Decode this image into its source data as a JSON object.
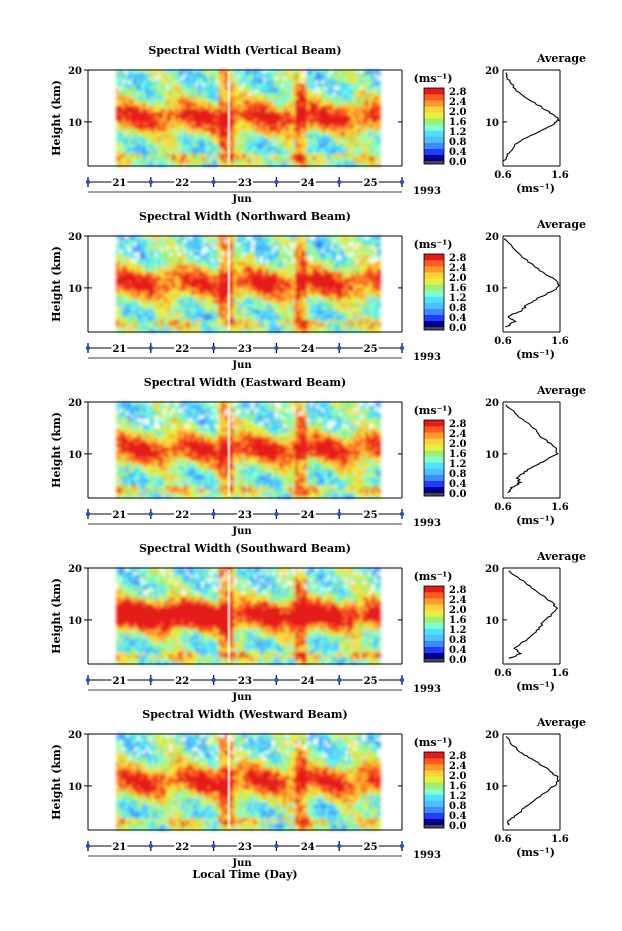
{
  "common": {
    "unit_label": "(ms⁻¹)",
    "average_title": "Average",
    "month_label": "Jun",
    "year_label": "1993",
    "x_axis_label": "Local Time (Day)",
    "height_label": "Height (km)",
    "colorbar_ticks": [
      "0.0",
      "0.4",
      "0.8",
      "1.2",
      "1.6",
      "2.0",
      "2.4",
      "2.8"
    ],
    "colormap": [
      "#4a4a4a",
      "#00008b",
      "#1f3cff",
      "#3d8cff",
      "#4fc0ff",
      "#4ee0ff",
      "#7fffd0",
      "#9ff070",
      "#e6f040",
      "#ffd23a",
      "#ff9a2a",
      "#ff5a20",
      "#e51a1a"
    ]
  },
  "chart_data": [
    {
      "type": "heatmap",
      "title": "Spectral Width (Vertical Beam)",
      "xlabel": "",
      "ylabel": "Height (km)",
      "x_ticks": [
        "21",
        "22",
        "23",
        "24",
        "25"
      ],
      "y_ticks": [
        "10",
        "20"
      ],
      "xlim": [
        20.5,
        25.5
      ],
      "ylim": [
        1.5,
        20
      ],
      "data_coverage": [
        20.95,
        25.15
      ],
      "colorbar": {
        "label": "(ms⁻¹)",
        "range": [
          0.0,
          2.8
        ],
        "ticks": [
          0.0,
          0.4,
          0.8,
          1.2,
          1.6,
          2.0,
          2.4,
          2.8
        ]
      },
      "average_profile": {
        "title": "Average",
        "xlabel": "(ms⁻¹)",
        "xlim": [
          0.6,
          1.6
        ],
        "x_ticks": [
          "0.6",
          "1.6"
        ],
        "y_ticks": [
          "10",
          "20"
        ],
        "ylim": [
          1.5,
          20
        ],
        "height_km": [
          2.5,
          4,
          6,
          8,
          9.5,
          10.5,
          12,
          14,
          16,
          18,
          19.5
        ],
        "width_ms": [
          0.62,
          0.7,
          0.85,
          1.2,
          1.5,
          1.58,
          1.4,
          1.1,
          0.85,
          0.7,
          0.65
        ]
      }
    },
    {
      "type": "heatmap",
      "title": "Spectral Width (Northward Beam)",
      "xlabel": "",
      "ylabel": "Height (km)",
      "x_ticks": [
        "21",
        "22",
        "23",
        "24",
        "25"
      ],
      "y_ticks": [
        "10",
        "20"
      ],
      "xlim": [
        20.5,
        25.5
      ],
      "ylim": [
        1.5,
        20
      ],
      "data_coverage": [
        20.95,
        25.15
      ],
      "colorbar": {
        "label": "(ms⁻¹)",
        "range": [
          0.0,
          2.8
        ],
        "ticks": [
          0.0,
          0.4,
          0.8,
          1.2,
          1.6,
          2.0,
          2.4,
          2.8
        ]
      },
      "average_profile": {
        "title": "Average",
        "xlabel": "(ms⁻¹)",
        "xlim": [
          0.6,
          1.6
        ],
        "x_ticks": [
          "0.6",
          "1.6"
        ],
        "y_ticks": [
          "10",
          "20"
        ],
        "ylim": [
          1.5,
          20
        ],
        "height_km": [
          2.5,
          3.5,
          4.5,
          5.5,
          7,
          8.5,
          10,
          11,
          13,
          15,
          17,
          19.5
        ],
        "width_ms": [
          0.65,
          0.8,
          0.7,
          0.9,
          1.05,
          1.3,
          1.55,
          1.58,
          1.3,
          1.05,
          0.85,
          0.62
        ]
      }
    },
    {
      "type": "heatmap",
      "title": "Spectral Width (Eastward Beam)",
      "xlabel": "",
      "ylabel": "Height (km)",
      "x_ticks": [
        "21",
        "22",
        "23",
        "24",
        "25"
      ],
      "y_ticks": [
        "10",
        "20"
      ],
      "xlim": [
        20.5,
        25.5
      ],
      "ylim": [
        1.5,
        20
      ],
      "data_coverage": [
        20.95,
        25.15
      ],
      "colorbar": {
        "label": "(ms⁻¹)",
        "range": [
          0.0,
          2.8
        ],
        "ticks": [
          0.0,
          0.4,
          0.8,
          1.2,
          1.6,
          2.0,
          2.4,
          2.8
        ]
      },
      "average_profile": {
        "title": "Average",
        "xlabel": "(ms⁻¹)",
        "xlim": [
          0.6,
          1.6
        ],
        "x_ticks": [
          "0.6",
          "1.6"
        ],
        "y_ticks": [
          "10",
          "20"
        ],
        "ylim": [
          1.5,
          20
        ],
        "height_km": [
          2.5,
          3.5,
          4.5,
          5.5,
          7,
          8.5,
          10,
          11.5,
          13,
          15,
          17,
          19.5
        ],
        "width_ms": [
          0.68,
          0.75,
          0.9,
          0.85,
          1.05,
          1.3,
          1.55,
          1.5,
          1.3,
          1.15,
          0.9,
          0.65
        ]
      }
    },
    {
      "type": "heatmap",
      "title": "Spectral Width (Southward Beam)",
      "xlabel": "",
      "ylabel": "Height (km)",
      "x_ticks": [
        "21",
        "22",
        "23",
        "24",
        "25"
      ],
      "y_ticks": [
        "10",
        "20"
      ],
      "xlim": [
        20.5,
        25.5
      ],
      "ylim": [
        1.5,
        20
      ],
      "data_coverage": [
        20.95,
        25.15
      ],
      "colorbar": {
        "label": "(ms⁻¹)",
        "range": [
          0.0,
          2.8
        ],
        "ticks": [
          0.0,
          0.4,
          0.8,
          1.2,
          1.6,
          2.0,
          2.4,
          2.8
        ]
      },
      "average_profile": {
        "title": "Average",
        "xlabel": "(ms⁻¹)",
        "xlim": [
          0.6,
          1.6
        ],
        "x_ticks": [
          "0.6",
          "1.6"
        ],
        "y_ticks": [
          "10",
          "20"
        ],
        "ylim": [
          1.5,
          20
        ],
        "height_km": [
          2.5,
          3.5,
          4.5,
          6,
          8,
          9.5,
          11,
          12,
          13.5,
          15.5,
          17.5,
          19.5
        ],
        "width_ms": [
          0.7,
          0.9,
          0.8,
          1.0,
          1.2,
          1.3,
          1.45,
          1.55,
          1.45,
          1.2,
          0.95,
          0.7
        ]
      }
    },
    {
      "type": "heatmap",
      "title": "Spectral Width (Westward Beam)",
      "xlabel": "Local Time (Day)",
      "ylabel": "Height (km)",
      "x_ticks": [
        "21",
        "22",
        "23",
        "24",
        "25"
      ],
      "y_ticks": [
        "10",
        "20"
      ],
      "xlim": [
        20.5,
        25.5
      ],
      "ylim": [
        1.5,
        20
      ],
      "data_coverage": [
        20.95,
        25.15
      ],
      "colorbar": {
        "label": "(ms⁻¹)",
        "range": [
          0.0,
          2.8
        ],
        "ticks": [
          0.0,
          0.4,
          0.8,
          1.2,
          1.6,
          2.0,
          2.4,
          2.8
        ]
      },
      "average_profile": {
        "title": "Average",
        "xlabel": "(ms⁻¹)",
        "xlim": [
          0.6,
          1.6
        ],
        "x_ticks": [
          "0.6",
          "1.6"
        ],
        "y_ticks": [
          "10",
          "20"
        ],
        "ylim": [
          1.5,
          20
        ],
        "height_km": [
          2.5,
          3,
          4.5,
          6,
          8,
          10,
          11.5,
          13.5,
          15.5,
          17,
          19.5
        ],
        "width_ms": [
          0.72,
          0.68,
          0.85,
          1.0,
          1.25,
          1.5,
          1.58,
          1.35,
          1.05,
          0.85,
          0.65
        ]
      }
    }
  ]
}
